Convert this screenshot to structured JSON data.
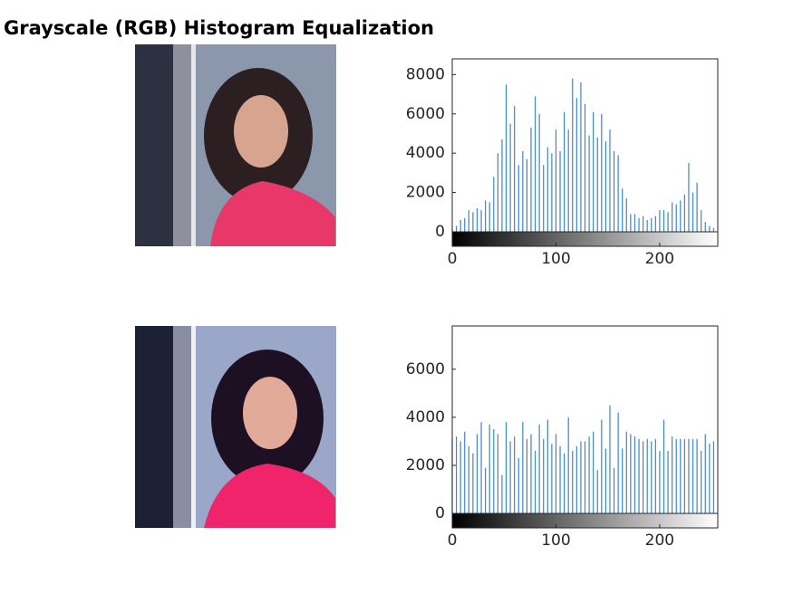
{
  "title": "Grayscale (RGB) Histogram Equalization",
  "chart_data": [
    {
      "type": "stem",
      "color": "#3d85c6",
      "x": [
        0,
        4,
        8,
        12,
        16,
        20,
        24,
        28,
        32,
        36,
        40,
        44,
        48,
        52,
        56,
        60,
        64,
        68,
        72,
        76,
        80,
        84,
        88,
        92,
        96,
        100,
        104,
        108,
        112,
        116,
        120,
        124,
        128,
        132,
        136,
        140,
        144,
        148,
        152,
        156,
        160,
        164,
        168,
        172,
        176,
        180,
        184,
        188,
        192,
        196,
        200,
        204,
        208,
        212,
        216,
        220,
        224,
        228,
        232,
        236,
        240,
        244,
        248,
        252
      ],
      "values": [
        200,
        300,
        600,
        700,
        1100,
        1000,
        1200,
        1100,
        1600,
        1500,
        2800,
        4000,
        4700,
        7500,
        5500,
        6400,
        3400,
        4100,
        3700,
        5300,
        6900,
        6000,
        3400,
        4300,
        4000,
        5200,
        4100,
        6100,
        5200,
        7800,
        6800,
        7600,
        6500,
        4900,
        6100,
        4800,
        6000,
        4600,
        5200,
        4100,
        3900,
        2200,
        1700,
        900,
        900,
        700,
        800,
        600,
        700,
        800,
        1100,
        1100,
        1000,
        1500,
        1400,
        1600,
        1900,
        3500,
        2000,
        2500,
        1100,
        500,
        300,
        200
      ],
      "xlim": [
        0,
        256
      ],
      "xticks": [
        0,
        100,
        200
      ],
      "ylim": [
        0,
        8800
      ],
      "yticks": [
        0,
        2000,
        4000,
        6000,
        8000
      ]
    },
    {
      "type": "stem",
      "color": "#3d85c6",
      "x": [
        0,
        4,
        8,
        12,
        16,
        20,
        24,
        28,
        32,
        36,
        40,
        44,
        48,
        52,
        56,
        60,
        64,
        68,
        72,
        76,
        80,
        84,
        88,
        92,
        96,
        100,
        104,
        108,
        112,
        116,
        120,
        124,
        128,
        132,
        136,
        140,
        144,
        148,
        152,
        156,
        160,
        164,
        168,
        172,
        176,
        180,
        184,
        188,
        192,
        196,
        200,
        204,
        208,
        212,
        216,
        220,
        224,
        228,
        232,
        236,
        240,
        244,
        248,
        252
      ],
      "values": [
        3100,
        3200,
        3000,
        3400,
        2800,
        2500,
        3300,
        3800,
        1900,
        3700,
        3500,
        3300,
        1600,
        3800,
        3000,
        3200,
        2300,
        3800,
        3100,
        3300,
        2600,
        3700,
        3100,
        3900,
        2900,
        3300,
        2800,
        2500,
        4000,
        2600,
        2800,
        3000,
        3000,
        3200,
        3400,
        1800,
        3900,
        2700,
        4500,
        1900,
        4200,
        2700,
        3400,
        3300,
        3200,
        3100,
        3000,
        3100,
        3000,
        3100,
        2600,
        3900,
        2600,
        3200,
        3100,
        3100,
        3100,
        3100,
        3100,
        3100,
        2600,
        3300,
        2900,
        3000
      ],
      "xlim": [
        0,
        256
      ],
      "xticks": [
        0,
        100,
        200
      ],
      "ylim": [
        0,
        7800
      ],
      "yticks": [
        0,
        2000,
        4000,
        6000
      ]
    }
  ]
}
